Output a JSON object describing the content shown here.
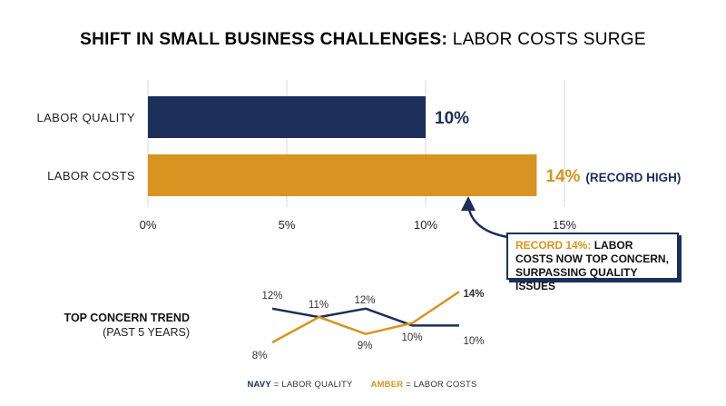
{
  "header": {
    "title_bold": "SHIFT IN SMALL BUSINESS CHALLENGES:",
    "title_rest": "LABOR COSTS SURGE"
  },
  "colors": {
    "navy": "#1b2f5a",
    "amber": "#d89420",
    "grid": "#d9d9d9"
  },
  "chart_data": [
    {
      "type": "bar",
      "orientation": "horizontal",
      "categories": [
        "LABOR QUALITY",
        "LABOR COSTS"
      ],
      "values": [
        10,
        14
      ],
      "value_labels": [
        "10%",
        "14%"
      ],
      "annotations": [
        "",
        "(RECORD HIGH)"
      ],
      "xticks": [
        "0%",
        "5%",
        "10%",
        "15%"
      ],
      "xlim": [
        0,
        15
      ],
      "grid": true
    },
    {
      "type": "line",
      "title": "TOP CONCERN TREND",
      "subtitle": "(PAST 5 YEARS)",
      "x": [
        1,
        2,
        3,
        4,
        5
      ],
      "series": [
        {
          "name": "LABOR QUALITY",
          "color": "#1b2f5a",
          "values": [
            12,
            11,
            12,
            10,
            10
          ],
          "labels": [
            "12%",
            "11%",
            "12%",
            "",
            "10%"
          ]
        },
        {
          "name": "LABOR COSTS",
          "color": "#d89420",
          "values": [
            8,
            11,
            9,
            10.3,
            14
          ],
          "labels": [
            "8%",
            "",
            "9%",
            "10%",
            "14%"
          ]
        }
      ],
      "legend": {
        "navy_key": "NAVY",
        "navy_text": "= LABOR QUALITY",
        "amber_key": "AMBER",
        "amber_text": "= LABOR COSTS",
        "placement": "bottom"
      }
    }
  ],
  "callout": {
    "highlight": "RECORD 14%:",
    "text": "LABOR COSTS NOW TOP CONCERN, SURPASSING QUALITY ISSUES"
  }
}
